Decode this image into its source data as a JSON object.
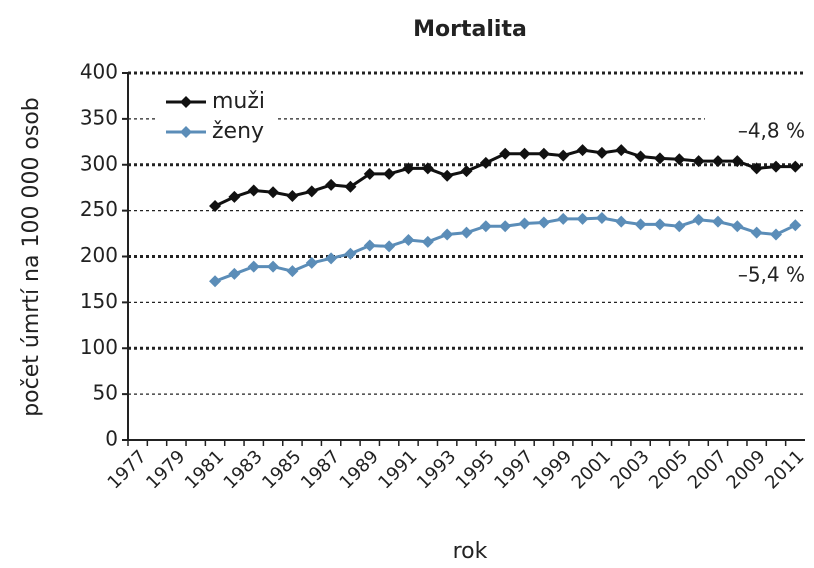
{
  "chart_data": {
    "type": "line",
    "title": "Mortalita",
    "x_label": "rok",
    "y_label": "počet úmrtí na 100 000 osob",
    "categories": [
      "1977",
      null,
      "1979",
      null,
      "1981",
      null,
      "1983",
      null,
      "1985",
      null,
      "1987",
      null,
      "1989",
      null,
      "1991",
      null,
      "1993",
      null,
      "1995",
      null,
      "1997",
      null,
      "1999",
      null,
      "2001",
      null,
      "2003",
      null,
      "2005",
      null,
      "2007",
      null,
      "2009",
      null,
      "2011"
    ],
    "series": [
      {
        "name": "muži",
        "color": "#111111",
        "values": [
          null,
          null,
          null,
          null,
          255,
          265,
          272,
          270,
          266,
          271,
          278,
          276,
          290,
          290,
          296,
          296,
          288,
          293,
          302,
          312,
          312,
          312,
          310,
          316,
          313,
          316,
          309,
          307,
          306,
          304,
          304,
          304,
          296,
          298,
          298
        ]
      },
      {
        "name": "ženy",
        "color": "#5b8db8",
        "values": [
          null,
          null,
          null,
          null,
          173,
          181,
          189,
          189,
          184,
          193,
          198,
          203,
          212,
          211,
          218,
          216,
          224,
          226,
          233,
          233,
          236,
          237,
          241,
          241,
          242,
          238,
          235,
          235,
          233,
          240,
          238,
          233,
          226,
          224,
          234
        ]
      }
    ],
    "annotations": [
      "–4,8 %",
      "–5,4 %"
    ],
    "ylim": [
      0,
      400
    ],
    "yticks": [
      0,
      50,
      100,
      150,
      200,
      250,
      300,
      350,
      400
    ],
    "grid": true,
    "legend": "top-left"
  }
}
